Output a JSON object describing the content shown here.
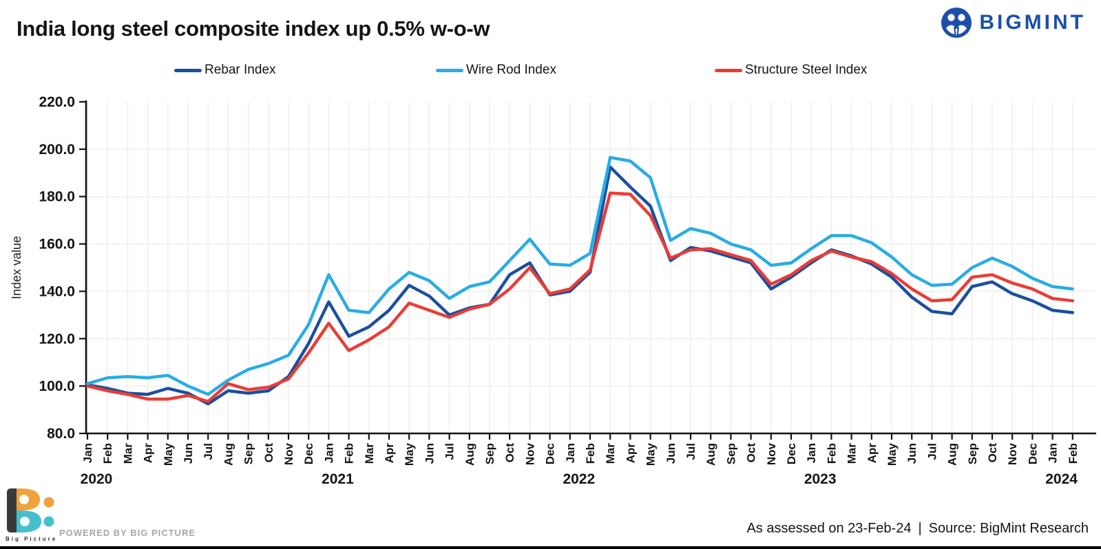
{
  "title": "India long steel composite index up 0.5% w-o-w",
  "brand": {
    "name": "BIGMINT",
    "color": "#1D4FA8"
  },
  "footer": {
    "assessed": "As assessed on 23-Feb-24",
    "separator": "|",
    "source": "Source: BigMint Research",
    "powered_by": "POWERED BY BIG PICTURE",
    "logo_text": "Big Picture"
  },
  "palette": {
    "axis": "#111111",
    "grid": "#ECECEC",
    "text": "#141414",
    "muted_text": "#A6A6A6",
    "brand_blue": "#1D4FA8",
    "bp_orange": "#F0A23C",
    "bp_teal": "#45BFCB",
    "bp_dark": "#3A3A3C"
  },
  "chart_data": {
    "type": "line",
    "title": "India long steel composite index up 0.5% w-o-w",
    "xlabel": "",
    "ylabel": "Index value",
    "ylim": [
      80,
      220
    ],
    "y_ticks": [
      80,
      100,
      120,
      140,
      160,
      180,
      200,
      220
    ],
    "y_tick_labels": [
      "80.0",
      "100.0",
      "120.0",
      "140.0",
      "160.0",
      "180.0",
      "200.0",
      "220.0"
    ],
    "grid": true,
    "legend_position": "top",
    "x_months": [
      "Jan",
      "Feb",
      "Mar",
      "Apr",
      "May",
      "Jun",
      "Jul",
      "Aug",
      "Sep",
      "Oct",
      "Nov",
      "Dec",
      "Jan",
      "Feb",
      "Mar",
      "Apr",
      "May",
      "Jun",
      "Jul",
      "Aug",
      "Sep",
      "Oct",
      "Nov",
      "Dec",
      "Jan",
      "Feb",
      "Mar",
      "Apr",
      "May",
      "Jun",
      "Jul",
      "Aug",
      "Sep",
      "Oct",
      "Nov",
      "Dec",
      "Jan",
      "Feb",
      "Mar",
      "Apr",
      "May",
      "Jun",
      "Jul",
      "Aug",
      "Sep",
      "Oct",
      "Nov",
      "Dec",
      "Jan",
      "Feb"
    ],
    "years": [
      {
        "label": "2020",
        "start_index": 0
      },
      {
        "label": "2021",
        "start_index": 12
      },
      {
        "label": "2022",
        "start_index": 24
      },
      {
        "label": "2023",
        "start_index": 36
      },
      {
        "label": "2024",
        "start_index": 48
      }
    ],
    "series": [
      {
        "name": "Rebar Index",
        "color": "#1B4F9E",
        "values": [
          100.5,
          99,
          97,
          96.5,
          99,
          97,
          92.5,
          98,
          97,
          98,
          104,
          118,
          135.5,
          121,
          125,
          132,
          142.5,
          138,
          130,
          133,
          134.5,
          147,
          152,
          138.5,
          140,
          148,
          192.5,
          184,
          176,
          153,
          158.5,
          157,
          154.5,
          152,
          141,
          146,
          152,
          157.5,
          155,
          151.5,
          146,
          137.5,
          131.5,
          130.5,
          142,
          144,
          139,
          136,
          132,
          131
        ]
      },
      {
        "name": "Wire Rod Index",
        "color": "#29ACE3",
        "values": [
          101,
          103.5,
          104,
          103.5,
          104.5,
          100,
          96.5,
          102.5,
          107,
          109.5,
          113,
          126,
          147,
          132,
          131,
          141,
          148,
          144.5,
          137,
          142,
          144,
          153,
          162,
          151.5,
          151,
          156,
          196.5,
          195,
          188,
          161.5,
          166.5,
          164.5,
          160,
          157.5,
          151,
          152,
          158,
          163.5,
          163.5,
          160.5,
          154.5,
          147,
          142.5,
          143,
          150,
          154,
          150.5,
          145.5,
          142,
          141
        ]
      },
      {
        "name": "Structure Steel Index",
        "color": "#EA3C36",
        "values": [
          100,
          98,
          96.5,
          94.5,
          94.5,
          96,
          93.5,
          101,
          98.5,
          99.5,
          103,
          114,
          126.5,
          115,
          119.5,
          125,
          135,
          132,
          129,
          132.5,
          134.5,
          141,
          150,
          139,
          141,
          149,
          181.5,
          181,
          172,
          154,
          157.5,
          158,
          155.5,
          153,
          143,
          147,
          153,
          157,
          154.5,
          152.5,
          147.5,
          141,
          136,
          136.5,
          146,
          147,
          143.5,
          141,
          137,
          136
        ]
      }
    ]
  }
}
